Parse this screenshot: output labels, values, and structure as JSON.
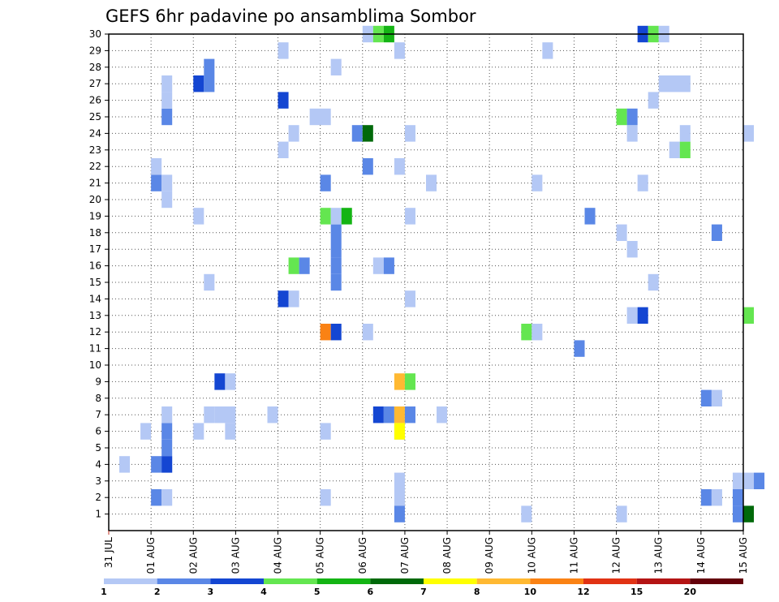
{
  "chart_data": {
    "type": "heatmap",
    "title": "GEFS 6hr padavine po ansamblima Sombor",
    "xlabel": "",
    "ylabel": "",
    "x_labels": [
      "31 JUL",
      "01 AUG",
      "02 AUG",
      "03 AUG",
      "04 AUG",
      "05 AUG",
      "06 AUG",
      "07 AUG",
      "08 AUG",
      "09 AUG",
      "10 AUG",
      "11 AUG",
      "12 AUG",
      "13 AUG",
      "14 AUG",
      "15 AUG"
    ],
    "xlim": [
      0,
      15
    ],
    "y_labels": [
      "1",
      "2",
      "3",
      "4",
      "5",
      "6",
      "7",
      "8",
      "9",
      "10",
      "11",
      "12",
      "13",
      "14",
      "15",
      "16",
      "17",
      "18",
      "19",
      "20",
      "21",
      "22",
      "23",
      "24",
      "25",
      "26",
      "27",
      "28",
      "29",
      "30"
    ],
    "ylim": [
      0,
      30
    ],
    "grid": true,
    "legend": "bottom",
    "colorbar": {
      "labels": [
        "1",
        "2",
        "3",
        "4",
        "5",
        "6",
        "7",
        "8",
        "10",
        "12",
        "15",
        "20"
      ],
      "colors": [
        "#b4c8f5",
        "#5a87e6",
        "#1446d2",
        "#64e650",
        "#14b414",
        "#00690a",
        "#ffff00",
        "#ffb932",
        "#fa8214",
        "#e13214",
        "#b41414",
        "#64000a"
      ]
    },
    "cells": [
      [
        0.75,
        0.25,
        6,
        1
      ],
      [
        1.25,
        0.25,
        6,
        2
      ],
      [
        2.75,
        0.25,
        6,
        1
      ],
      [
        5.0,
        0.25,
        6,
        1
      ],
      [
        6.75,
        0.25,
        6,
        1
      ],
      [
        6.75,
        0.25,
        3,
        1
      ],
      [
        1.25,
        0.25,
        5,
        2
      ],
      [
        6.75,
        0.25,
        2,
        1
      ],
      [
        6.75,
        0.25,
        1,
        2
      ],
      [
        9.75,
        0.25,
        1,
        1
      ],
      [
        12.0,
        0.25,
        1,
        1
      ],
      [
        1.0,
        0.25,
        2,
        2
      ],
      [
        1.25,
        0.25,
        2,
        1
      ],
      [
        5.0,
        0.25,
        2,
        1
      ],
      [
        14.0,
        0.25,
        2,
        2
      ],
      [
        14.25,
        0.25,
        2,
        1
      ],
      [
        14.75,
        0.25,
        2,
        2
      ],
      [
        14.75,
        0.25,
        1,
        2
      ],
      [
        15.0,
        0.25,
        1,
        6
      ],
      [
        14.75,
        0.5,
        3,
        1
      ],
      [
        15.25,
        0.25,
        3,
        2
      ],
      [
        1.25,
        0.25,
        4,
        1
      ],
      [
        0.25,
        0.25,
        4,
        1
      ],
      [
        1.0,
        0.25,
        4,
        2
      ],
      [
        1.25,
        0.25,
        4,
        3
      ],
      [
        1.25,
        0.25,
        7,
        1
      ],
      [
        2.25,
        0.25,
        7,
        1
      ],
      [
        2.5,
        0.5,
        7,
        1
      ],
      [
        3.75,
        0.25,
        7,
        1
      ],
      [
        2.0,
        0.25,
        6,
        1
      ],
      [
        6.25,
        0.25,
        7,
        3
      ],
      [
        6.5,
        0.25,
        7,
        2
      ],
      [
        6.75,
        0.25,
        7,
        8
      ],
      [
        7.0,
        0.25,
        7,
        2
      ],
      [
        7.75,
        0.25,
        7,
        1
      ],
      [
        6.75,
        0.25,
        6,
        7
      ],
      [
        14.0,
        0.25,
        8,
        2
      ],
      [
        14.25,
        0.25,
        8,
        1
      ],
      [
        2.5,
        0.25,
        9,
        3
      ],
      [
        2.75,
        0.25,
        9,
        1
      ],
      [
        6.75,
        0.25,
        9,
        8
      ],
      [
        7.0,
        0.25,
        9,
        4
      ],
      [
        11.0,
        0.25,
        11,
        2
      ],
      [
        5.0,
        0.25,
        12,
        9
      ],
      [
        5.25,
        0.25,
        12,
        3
      ],
      [
        6.0,
        0.25,
        12,
        1
      ],
      [
        9.75,
        0.25,
        12,
        4
      ],
      [
        10.0,
        0.25,
        12,
        1
      ],
      [
        12.25,
        0.25,
        13,
        1
      ],
      [
        12.5,
        0.25,
        13,
        3
      ],
      [
        15.0,
        0.25,
        13,
        4
      ],
      [
        4.0,
        0.25,
        14,
        3
      ],
      [
        4.25,
        0.25,
        14,
        1
      ],
      [
        7.0,
        0.25,
        14,
        1
      ],
      [
        2.25,
        0.25,
        15,
        1
      ],
      [
        5.25,
        0.25,
        15,
        2
      ],
      [
        12.75,
        0.25,
        15,
        1
      ],
      [
        4.25,
        0.25,
        16,
        4
      ],
      [
        4.5,
        0.25,
        16,
        2
      ],
      [
        5.25,
        0.25,
        16,
        2
      ],
      [
        6.25,
        0.25,
        16,
        1
      ],
      [
        6.5,
        0.25,
        16,
        2
      ],
      [
        5.25,
        0.25,
        17,
        2
      ],
      [
        12.25,
        0.25,
        17,
        1
      ],
      [
        5.25,
        0.25,
        18,
        2
      ],
      [
        12.0,
        0.25,
        18,
        1
      ],
      [
        14.25,
        0.25,
        18,
        2
      ],
      [
        2.0,
        0.25,
        19,
        1
      ],
      [
        5.0,
        0.25,
        19,
        4
      ],
      [
        5.25,
        0.25,
        19,
        1
      ],
      [
        5.5,
        0.25,
        19,
        5
      ],
      [
        7.0,
        0.25,
        19,
        1
      ],
      [
        11.25,
        0.25,
        19,
        2
      ],
      [
        1.25,
        0.25,
        20,
        1
      ],
      [
        1.0,
        0.25,
        21,
        2
      ],
      [
        1.25,
        0.25,
        21,
        1
      ],
      [
        5.0,
        0.25,
        21,
        2
      ],
      [
        7.5,
        0.25,
        21,
        1
      ],
      [
        10.0,
        0.25,
        21,
        1
      ],
      [
        12.5,
        0.25,
        21,
        1
      ],
      [
        1.0,
        0.25,
        22,
        1
      ],
      [
        6.0,
        0.25,
        22,
        2
      ],
      [
        6.75,
        0.25,
        22,
        1
      ],
      [
        4.0,
        0.25,
        23,
        1
      ],
      [
        13.25,
        0.25,
        23,
        1
      ],
      [
        13.5,
        0.25,
        23,
        4
      ],
      [
        4.25,
        0.25,
        24,
        1
      ],
      [
        5.75,
        0.25,
        24,
        2
      ],
      [
        6.0,
        0.25,
        24,
        6
      ],
      [
        7.0,
        0.25,
        24,
        1
      ],
      [
        12.25,
        0.25,
        24,
        1
      ],
      [
        13.5,
        0.25,
        24,
        1
      ],
      [
        15.0,
        0.25,
        24,
        1
      ],
      [
        1.25,
        0.25,
        25,
        2
      ],
      [
        4.75,
        0.5,
        25,
        1
      ],
      [
        12.0,
        0.25,
        25,
        4
      ],
      [
        12.25,
        0.25,
        25,
        2
      ],
      [
        1.25,
        0.25,
        26,
        1
      ],
      [
        4.0,
        0.25,
        26,
        3
      ],
      [
        12.75,
        0.25,
        26,
        1
      ],
      [
        1.25,
        0.25,
        27,
        1
      ],
      [
        2.0,
        0.25,
        27,
        3
      ],
      [
        2.25,
        0.25,
        27,
        2
      ],
      [
        13.0,
        0.75,
        27,
        1
      ],
      [
        2.25,
        0.25,
        28,
        2
      ],
      [
        5.25,
        0.25,
        28,
        1
      ],
      [
        4.0,
        0.25,
        29,
        1
      ],
      [
        6.75,
        0.25,
        29,
        1
      ],
      [
        10.25,
        0.25,
        29,
        1
      ],
      [
        6.0,
        0.25,
        30,
        1
      ],
      [
        6.25,
        0.25,
        30,
        4
      ],
      [
        6.5,
        0.25,
        30,
        5
      ],
      [
        12.5,
        0.25,
        30,
        3
      ],
      [
        12.75,
        0.25,
        30,
        4
      ],
      [
        13.0,
        0.25,
        30,
        1
      ]
    ]
  }
}
